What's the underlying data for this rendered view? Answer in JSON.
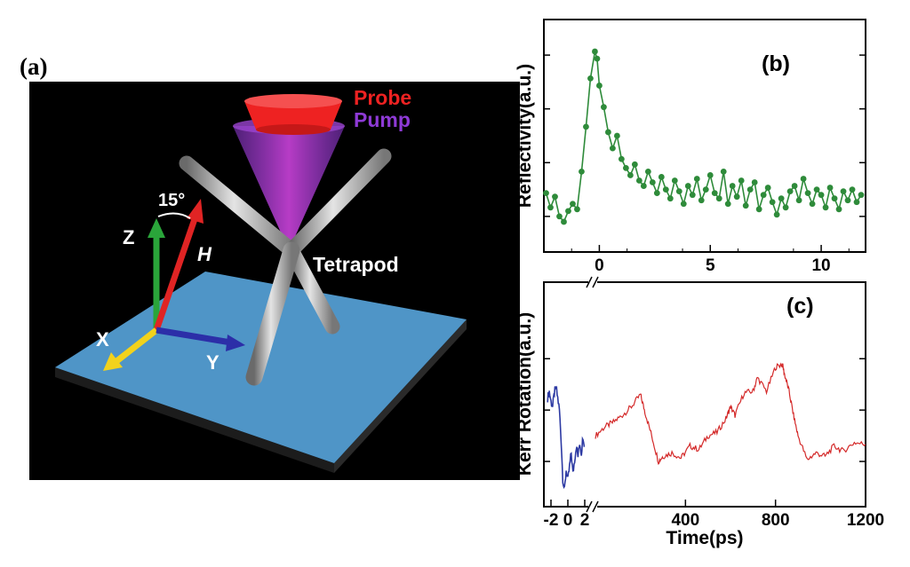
{
  "panel_a": {
    "label": "(a)",
    "probe_label": "Probe",
    "pump_label": "Pump",
    "tetrapod_label": "Tetrapod",
    "angle_label": "15°",
    "axis_labels": {
      "z": "Z",
      "x": "X",
      "y": "Y",
      "h": "H"
    },
    "colors": {
      "background": "#000000",
      "substrate": "#4f95c7",
      "probe": "#ee2222",
      "pump": "#8e3ad6",
      "rod": "#a9a9a9",
      "z_axis": "#2aa53a",
      "x_axis": "#f2d21c",
      "y_axis": "#2c2ea8",
      "h_axis": "#e02424"
    }
  },
  "chart_data": [
    {
      "panel_label": "(b)",
      "type": "line",
      "ylabel": "Reflectivity(a.u.)",
      "xlim": [
        -2.5,
        12
      ],
      "x_ticks": [
        "0",
        "5",
        "10"
      ],
      "x_tick_values": [
        0,
        5,
        10
      ],
      "color": "#2e8b3a",
      "marker": "circle",
      "y_ticks_labeled": false,
      "series": [
        {
          "x": [
            -2.4,
            -2.2,
            -2.0,
            -1.8,
            -1.6,
            -1.4,
            -1.2,
            -1.0,
            -0.8,
            -0.6,
            -0.4,
            -0.2,
            -0.1,
            0.0,
            0.2,
            0.4,
            0.6,
            0.8,
            1.0,
            1.2,
            1.4,
            1.6,
            1.8,
            2.0,
            2.2,
            2.4,
            2.6,
            2.8,
            3.0,
            3.2,
            3.4,
            3.6,
            3.8,
            4.0,
            4.2,
            4.4,
            4.6,
            4.8,
            5.0,
            5.2,
            5.4,
            5.6,
            5.8,
            6.0,
            6.2,
            6.4,
            6.6,
            6.8,
            7.0,
            7.2,
            7.4,
            7.6,
            7.8,
            8.0,
            8.2,
            8.4,
            8.6,
            8.8,
            9.0,
            9.2,
            9.4,
            9.6,
            9.8,
            10.0,
            10.2,
            10.4,
            10.6,
            10.8,
            11.0,
            11.2,
            11.4,
            11.6,
            11.8
          ],
          "y": [
            0.18,
            0.1,
            0.16,
            0.05,
            0.02,
            0.08,
            0.12,
            0.09,
            0.3,
            0.55,
            0.82,
            0.97,
            0.93,
            0.78,
            0.66,
            0.52,
            0.43,
            0.5,
            0.37,
            0.32,
            0.28,
            0.34,
            0.25,
            0.22,
            0.3,
            0.24,
            0.18,
            0.27,
            0.2,
            0.15,
            0.25,
            0.19,
            0.12,
            0.22,
            0.17,
            0.26,
            0.14,
            0.2,
            0.28,
            0.18,
            0.15,
            0.3,
            0.12,
            0.22,
            0.16,
            0.25,
            0.11,
            0.2,
            0.24,
            0.09,
            0.17,
            0.21,
            0.13,
            0.06,
            0.15,
            0.1,
            0.19,
            0.22,
            0.14,
            0.26,
            0.18,
            0.12,
            0.2,
            0.17,
            0.1,
            0.21,
            0.15,
            0.09,
            0.19,
            0.14,
            0.2,
            0.13,
            0.17
          ]
        }
      ]
    },
    {
      "panel_label": "(c)",
      "type": "line",
      "xlabel": "Time(ps)",
      "ylabel": "Kerr Rotation(a.u.)",
      "x_ticks": [
        "-2",
        "0",
        "2",
        "400",
        "800",
        "1200"
      ],
      "broken_axis": true,
      "y_ticks_labeled": false,
      "segments": [
        {
          "color": "#2d3aa3",
          "xlim": [
            -2.5,
            2.5
          ],
          "x": [
            -2.4,
            -2.2,
            -2.0,
            -1.8,
            -1.6,
            -1.4,
            -1.2,
            -1.0,
            -0.8,
            -0.6,
            -0.4,
            -0.2,
            0.0,
            0.2,
            0.4,
            0.6,
            0.8,
            1.0,
            1.2,
            1.4,
            1.6,
            1.8,
            2.0
          ],
          "y": [
            0.52,
            0.56,
            0.5,
            0.47,
            0.55,
            0.58,
            0.52,
            0.45,
            0.28,
            0.05,
            -0.02,
            0.1,
            0.04,
            0.12,
            0.2,
            0.08,
            0.16,
            0.24,
            0.18,
            0.26,
            0.2,
            0.3,
            0.24
          ]
        },
        {
          "color": "#d42a2a",
          "xlim": [
            0,
            1200
          ],
          "x": [
            0,
            40,
            80,
            120,
            160,
            200,
            220,
            250,
            280,
            300,
            340,
            380,
            420,
            460,
            500,
            540,
            580,
            600,
            620,
            660,
            700,
            720,
            760,
            800,
            830,
            840,
            860,
            880,
            900,
            940,
            980,
            1020,
            1060,
            1100,
            1150,
            1200
          ],
          "y": [
            0.3,
            0.35,
            0.38,
            0.42,
            0.47,
            0.54,
            0.44,
            0.3,
            0.15,
            0.18,
            0.2,
            0.17,
            0.24,
            0.22,
            0.3,
            0.32,
            0.4,
            0.47,
            0.42,
            0.55,
            0.56,
            0.64,
            0.56,
            0.7,
            0.72,
            0.66,
            0.56,
            0.42,
            0.3,
            0.16,
            0.2,
            0.18,
            0.24,
            0.21,
            0.26,
            0.25
          ]
        }
      ]
    }
  ]
}
